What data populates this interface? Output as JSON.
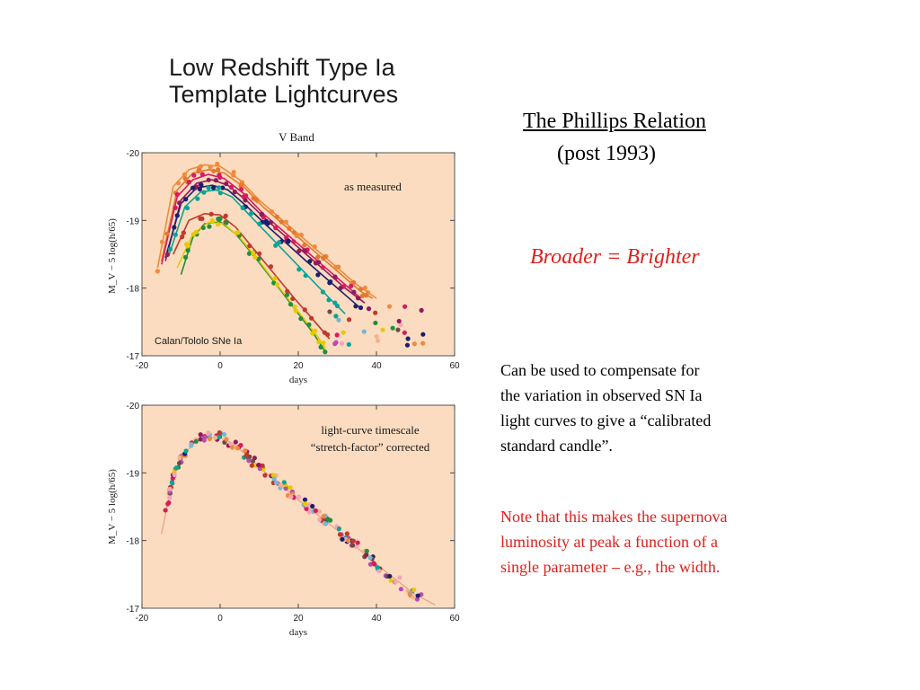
{
  "figure": {
    "title_lines": [
      "Low Redshift Type Ia",
      "Template Lightcurves"
    ]
  },
  "slide": {
    "heading": "The Phillips Relation",
    "subheading": "(post 1993)",
    "slogan": "Broader = Brighter",
    "para1_lines": [
      "Can be used to compensate for",
      "the variation in observed SN Ia",
      "light curves to give a “calibrated",
      "standard candle”."
    ],
    "para2_lines": [
      "Note that this makes the supernova",
      "luminosity at peak a function of a",
      "single parameter – e.g., the width."
    ]
  },
  "colors": {
    "plot_bg": "#fbdcc0",
    "accent_red": "#e0201b",
    "palette": [
      "#f08a3c",
      "#d81b60",
      "#8e1b5c",
      "#1b1f6e",
      "#0aa398",
      "#1f8f3a",
      "#e8c900",
      "#f4b28c",
      "#b34fb0",
      "#79b6d6",
      "#c0392b",
      "#f5a5b8",
      "#6d4c41"
    ]
  },
  "chart_data": [
    {
      "type": "line",
      "title": "V Band",
      "xlabel": "days",
      "ylabel": "M_V − 5 log(h/65)",
      "xlim": [
        -20,
        60
      ],
      "ylim": [
        -17,
        -20
      ],
      "y_inverted": true,
      "xticks": [
        -20,
        0,
        20,
        40,
        60
      ],
      "yticks": [
        -20,
        -19,
        -18,
        -17
      ],
      "annotations": [
        "as measured",
        "Calan/Tololo SNe Ia"
      ],
      "series": [
        {
          "color": "#f08a3c",
          "values": [
            [
              -16,
              -18.3
            ],
            [
              -12,
              -19.5
            ],
            [
              -8,
              -19.75
            ],
            [
              -4,
              -19.82
            ],
            [
              0,
              -19.8
            ],
            [
              5,
              -19.6
            ],
            [
              10,
              -19.3
            ],
            [
              15,
              -19.05
            ],
            [
              20,
              -18.8
            ],
            [
              25,
              -18.55
            ],
            [
              30,
              -18.3
            ],
            [
              35,
              -18.05
            ],
            [
              40,
              -17.85
            ]
          ]
        },
        {
          "color": "#e07a30",
          "values": [
            [
              -15,
              -18.4
            ],
            [
              -11,
              -19.45
            ],
            [
              -7,
              -19.7
            ],
            [
              -3,
              -19.75
            ],
            [
              1,
              -19.7
            ],
            [
              6,
              -19.5
            ],
            [
              11,
              -19.2
            ],
            [
              16,
              -18.95
            ],
            [
              21,
              -18.7
            ],
            [
              26,
              -18.45
            ],
            [
              31,
              -18.2
            ],
            [
              36,
              -17.95
            ],
            [
              39,
              -17.85
            ]
          ]
        },
        {
          "color": "#d81b60",
          "values": [
            [
              -15,
              -18.35
            ],
            [
              -11,
              -19.35
            ],
            [
              -7,
              -19.6
            ],
            [
              -3,
              -19.68
            ],
            [
              1,
              -19.62
            ],
            [
              6,
              -19.4
            ],
            [
              11,
              -19.1
            ],
            [
              16,
              -18.85
            ],
            [
              21,
              -18.6
            ],
            [
              26,
              -18.35
            ],
            [
              31,
              -18.1
            ],
            [
              36,
              -17.85
            ]
          ]
        },
        {
          "color": "#8e1b5c",
          "values": [
            [
              -14,
              -18.4
            ],
            [
              -10,
              -19.3
            ],
            [
              -6,
              -19.55
            ],
            [
              -2,
              -19.6
            ],
            [
              2,
              -19.52
            ],
            [
              7,
              -19.28
            ],
            [
              12,
              -19.0
            ],
            [
              17,
              -18.75
            ],
            [
              22,
              -18.5
            ],
            [
              27,
              -18.25
            ],
            [
              32,
              -18.0
            ],
            [
              37,
              -17.78
            ]
          ]
        },
        {
          "color": "#1b1f6e",
          "values": [
            [
              -14,
              -18.45
            ],
            [
              -10,
              -19.25
            ],
            [
              -6,
              -19.48
            ],
            [
              -2,
              -19.52
            ],
            [
              2,
              -19.45
            ],
            [
              7,
              -19.2
            ],
            [
              12,
              -18.92
            ],
            [
              17,
              -18.66
            ],
            [
              22,
              -18.4
            ],
            [
              27,
              -18.15
            ],
            [
              32,
              -17.9
            ],
            [
              36,
              -17.7
            ]
          ]
        },
        {
          "color": "#0aa398",
          "values": [
            [
              -13,
              -18.5
            ],
            [
              -9,
              -19.2
            ],
            [
              -5,
              -19.42
            ],
            [
              -1,
              -19.45
            ],
            [
              3,
              -19.35
            ],
            [
              8,
              -19.05
            ],
            [
              13,
              -18.75
            ],
            [
              18,
              -18.45
            ],
            [
              23,
              -18.15
            ],
            [
              28,
              -17.85
            ],
            [
              32,
              -17.62
            ]
          ]
        },
        {
          "color": "#c0392b",
          "values": [
            [
              -12,
              -18.5
            ],
            [
              -8,
              -19.0
            ],
            [
              -4,
              -19.1
            ],
            [
              0,
              -19.08
            ],
            [
              4,
              -18.9
            ],
            [
              9,
              -18.55
            ],
            [
              14,
              -18.2
            ],
            [
              19,
              -17.85
            ],
            [
              24,
              -17.52
            ],
            [
              28,
              -17.25
            ]
          ]
        },
        {
          "color": "#1f8f3a",
          "values": [
            [
              -10,
              -18.2
            ],
            [
              -7,
              -18.75
            ],
            [
              -4,
              -18.95
            ],
            [
              0,
              -18.98
            ],
            [
              4,
              -18.8
            ],
            [
              9,
              -18.45
            ],
            [
              14,
              -18.08
            ],
            [
              19,
              -17.7
            ],
            [
              24,
              -17.32
            ],
            [
              27,
              -17.05
            ]
          ]
        },
        {
          "color": "#e8c900",
          "values": [
            [
              -11,
              -18.3
            ],
            [
              -7,
              -18.8
            ],
            [
              -3,
              -18.97
            ],
            [
              1,
              -18.95
            ],
            [
              5,
              -18.75
            ],
            [
              10,
              -18.4
            ],
            [
              15,
              -18.02
            ],
            [
              20,
              -17.65
            ],
            [
              25,
              -17.28
            ],
            [
              27,
              -17.1
            ]
          ]
        }
      ]
    },
    {
      "type": "scatter",
      "xlabel": "days",
      "ylabel": "M_V − 5 log(h/65)",
      "xlim": [
        -20,
        60
      ],
      "ylim": [
        -17,
        -20
      ],
      "y_inverted": true,
      "xticks": [
        -20,
        0,
        20,
        40,
        60
      ],
      "yticks": [
        -20,
        -19,
        -18,
        -17
      ],
      "annotations": [
        "light-curve timescale",
        "“stretch-factor” corrected"
      ],
      "template_curve": [
        [
          -15,
          -18.1
        ],
        [
          -12,
          -18.95
        ],
        [
          -9,
          -19.3
        ],
        [
          -6,
          -19.47
        ],
        [
          -3,
          -19.52
        ],
        [
          0,
          -19.52
        ],
        [
          3,
          -19.44
        ],
        [
          6,
          -19.3
        ],
        [
          10,
          -19.08
        ],
        [
          15,
          -18.85
        ],
        [
          20,
          -18.6
        ],
        [
          25,
          -18.38
        ],
        [
          30,
          -18.15
        ],
        [
          35,
          -17.9
        ],
        [
          40,
          -17.65
        ],
        [
          45,
          -17.42
        ],
        [
          50,
          -17.2
        ],
        [
          55,
          -17.05
        ]
      ]
    }
  ]
}
